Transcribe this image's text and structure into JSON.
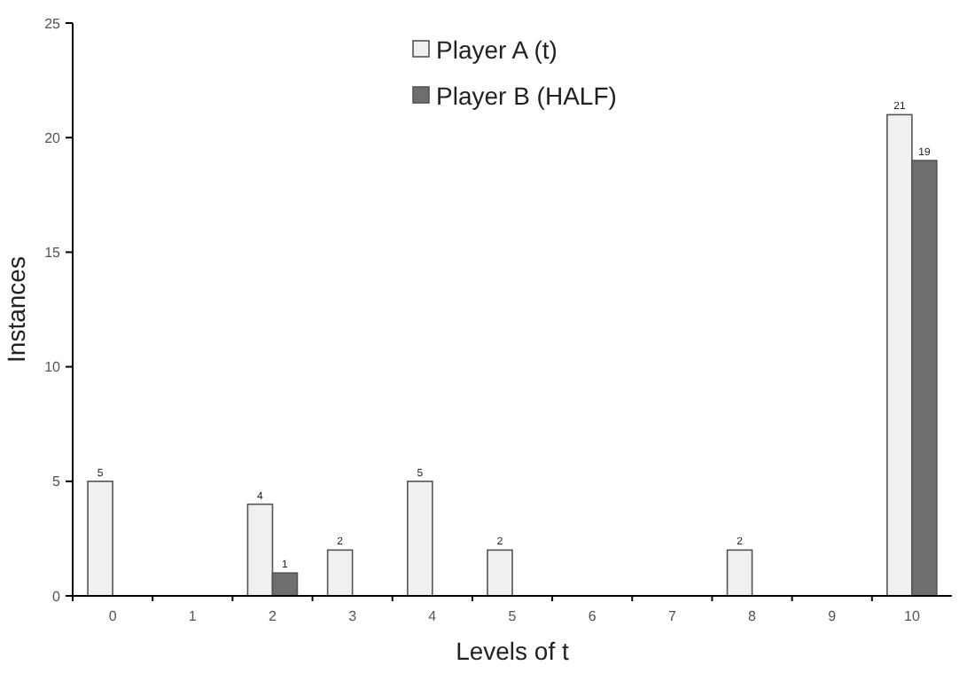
{
  "chart_data": {
    "type": "bar",
    "xlabel": "Levels of t",
    "ylabel": "Instances",
    "categories": [
      "0",
      "1",
      "2",
      "3",
      "4",
      "5",
      "6",
      "7",
      "8",
      "9",
      "10"
    ],
    "series": [
      {
        "name": "Player A (t)",
        "color": "#f0f0f0",
        "values": [
          5,
          0,
          4,
          2,
          5,
          2,
          0,
          0,
          2,
          0,
          21
        ],
        "value_labels": [
          "5",
          null,
          "4",
          "2",
          "5",
          "2",
          null,
          null,
          "2",
          null,
          "21"
        ]
      },
      {
        "name": "Player B (HALF)",
        "color": "#6e6e6e",
        "values": [
          0,
          0,
          1,
          0,
          0,
          0,
          0,
          0,
          0,
          0,
          19
        ],
        "value_labels": [
          null,
          null,
          "1",
          null,
          null,
          null,
          null,
          null,
          null,
          null,
          "19"
        ]
      }
    ],
    "ylim": [
      0,
      25
    ],
    "yticks": [
      0,
      5,
      10,
      15,
      20,
      25
    ],
    "grid": false,
    "legend": "top"
  }
}
